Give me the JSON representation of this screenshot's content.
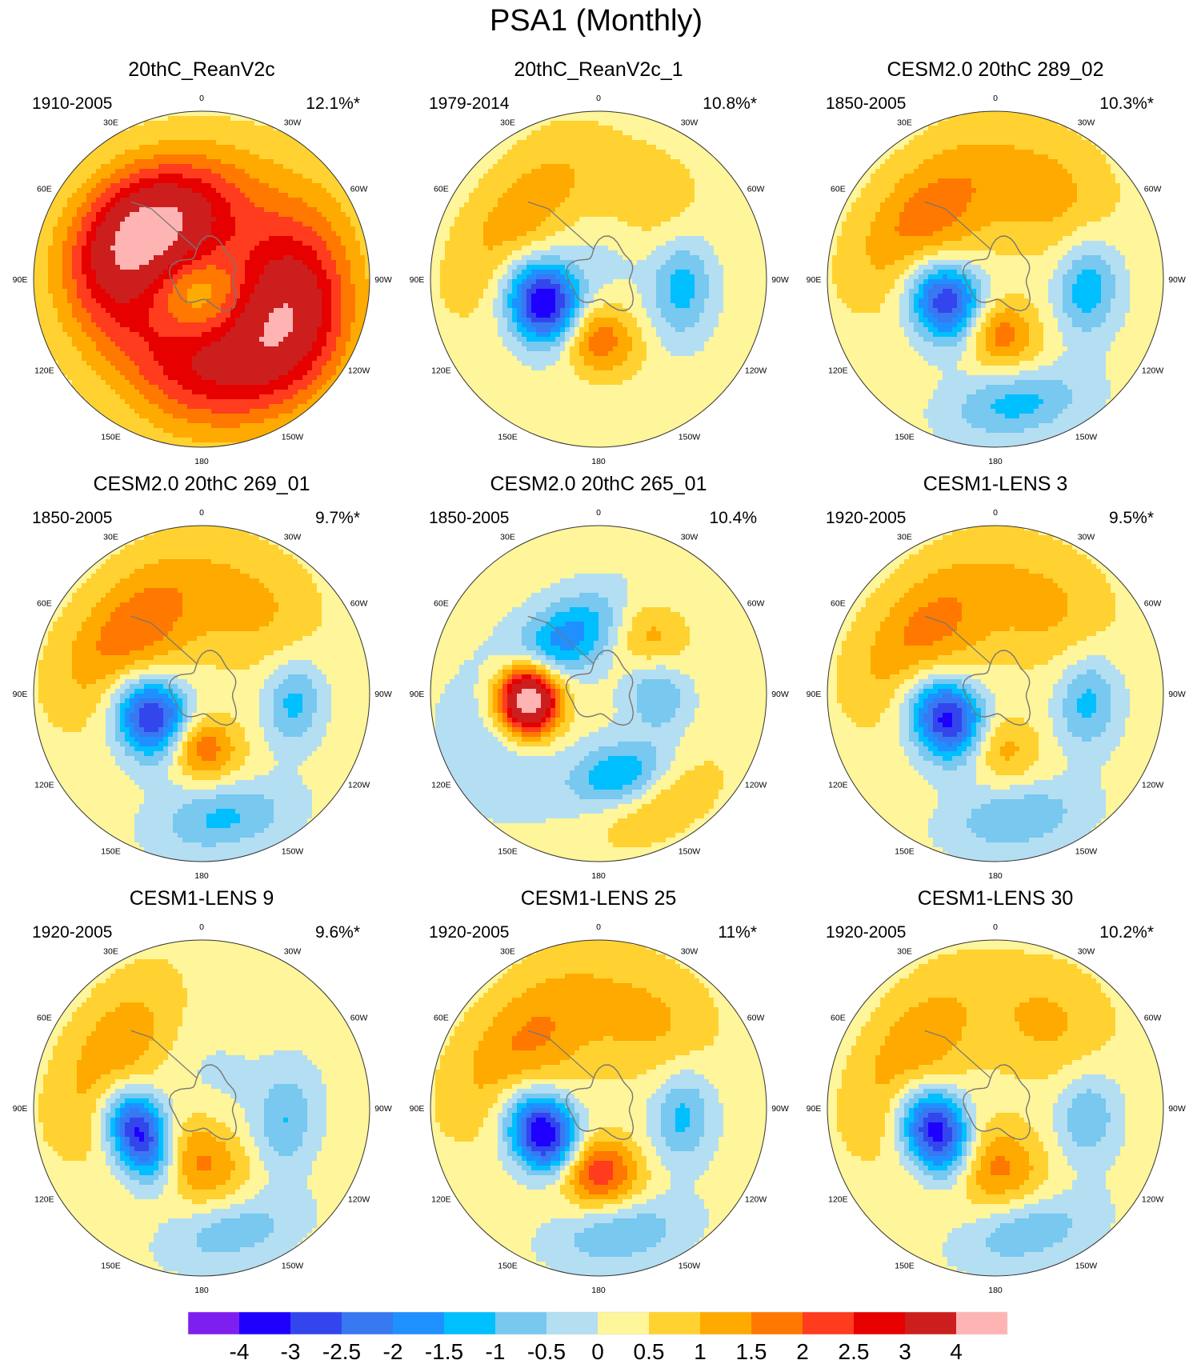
{
  "chart_data": {
    "type": "heatmap",
    "title": "PSA1 (Monthly)",
    "projection": "south polar stereographic",
    "longitude_labels": [
      "0",
      "30E",
      "60E",
      "90E",
      "120E",
      "150E",
      "180",
      "150W",
      "120W",
      "90W",
      "60W",
      "30W"
    ],
    "colorbar": {
      "levels": [
        "-4",
        "-3",
        "-2.5",
        "-2",
        "-1.5",
        "-1",
        "-0.5",
        "0",
        "0.5",
        "1",
        "1.5",
        "2",
        "2.5",
        "3",
        "4"
      ],
      "colors": [
        "#7f1fef",
        "#1f00ff",
        "#3346ee",
        "#3878f0",
        "#1f90ff",
        "#00bfff",
        "#78c8f0",
        "#b4def2",
        "#fff59a",
        "#ffd232",
        "#ffaa00",
        "#ff7800",
        "#ff3c1e",
        "#e60000",
        "#cd1e1e",
        "#ffb4b4"
      ]
    },
    "panels": [
      {
        "name": "20thC_ReanV2c",
        "period": "1910-2005",
        "variance": "12.1%*",
        "blobs": [
          {
            "a": -30,
            "r": 0.38,
            "s": 0.36,
            "t": 0.26,
            "v": 3.2
          },
          {
            "a": 150,
            "r": 0.5,
            "s": 0.38,
            "t": 0.3,
            "v": 2.6
          },
          {
            "a": 95,
            "r": 0.55,
            "s": 0.4,
            "t": 0.26,
            "v": 2.4
          },
          {
            "a": -70,
            "r": 0.5,
            "s": 0.32,
            "t": 0.24,
            "v": 1.8
          },
          {
            "a": -140,
            "r": 0.48,
            "s": 0.34,
            "t": 0.26,
            "v": 1.4
          },
          {
            "a": 200,
            "r": 0.12,
            "s": 0.24,
            "t": 0.18,
            "v": -1.3
          }
        ]
      },
      {
        "name": "20thC_ReanV2c_1",
        "period": "1979-2014",
        "variance": "10.8%*",
        "blobs": [
          {
            "a": -120,
            "r": 0.35,
            "s": 0.2,
            "t": 0.15,
            "v": -4.6
          },
          {
            "a": -165,
            "r": 0.35,
            "s": 0.2,
            "t": 0.15,
            "v": 2.5
          },
          {
            "a": 95,
            "r": 0.5,
            "s": 0.22,
            "t": 0.13,
            "v": -1.5
          },
          {
            "a": -55,
            "r": 0.58,
            "s": 0.4,
            "t": 0.2,
            "v": 1.2
          },
          {
            "a": 15,
            "r": 0.2,
            "s": 0.25,
            "t": 0.2,
            "v": -0.6
          },
          {
            "a": 30,
            "r": 0.5,
            "s": 0.3,
            "t": 0.25,
            "v": 0.8
          }
        ]
      },
      {
        "name": "CESM2.0 20thC 289_02",
        "period": "1850-2005",
        "variance": "10.3%*",
        "blobs": [
          {
            "a": -125,
            "r": 0.32,
            "s": 0.2,
            "t": 0.15,
            "v": -4.4
          },
          {
            "a": -165,
            "r": 0.32,
            "s": 0.2,
            "t": 0.15,
            "v": 2.8
          },
          {
            "a": 95,
            "r": 0.55,
            "s": 0.2,
            "t": 0.13,
            "v": -1.6
          },
          {
            "a": 170,
            "r": 0.75,
            "s": 0.28,
            "t": 0.14,
            "v": -1.4
          },
          {
            "a": -50,
            "r": 0.55,
            "s": 0.38,
            "t": 0.22,
            "v": 1.6
          },
          {
            "a": 30,
            "r": 0.6,
            "s": 0.3,
            "t": 0.25,
            "v": 1.0
          }
        ]
      },
      {
        "name": "CESM2.0 20thC 269_01",
        "period": "1850-2005",
        "variance": "9.7%*",
        "blobs": [
          {
            "a": -125,
            "r": 0.32,
            "s": 0.2,
            "t": 0.15,
            "v": -4.4
          },
          {
            "a": -165,
            "r": 0.32,
            "s": 0.18,
            "t": 0.14,
            "v": 3.0
          },
          {
            "a": 95,
            "r": 0.55,
            "s": 0.18,
            "t": 0.12,
            "v": -1.4
          },
          {
            "a": 170,
            "r": 0.75,
            "s": 0.28,
            "t": 0.14,
            "v": -1.3
          },
          {
            "a": -50,
            "r": 0.55,
            "s": 0.38,
            "t": 0.22,
            "v": 1.7
          },
          {
            "a": 30,
            "r": 0.6,
            "s": 0.3,
            "t": 0.25,
            "v": 0.9
          }
        ]
      },
      {
        "name": "CESM2.0 20thC 265_01",
        "period": "1850-2005",
        "variance": "10.4%",
        "blobs": [
          {
            "a": -95,
            "r": 0.42,
            "s": 0.15,
            "t": 0.13,
            "v": 5.2
          },
          {
            "a": -30,
            "r": 0.38,
            "s": 0.28,
            "t": 0.15,
            "v": -2.0
          },
          {
            "a": 165,
            "r": 0.5,
            "s": 0.2,
            "t": 0.13,
            "v": -1.8
          },
          {
            "a": 90,
            "r": 0.35,
            "s": 0.15,
            "t": 0.13,
            "v": -1.3
          },
          {
            "a": 40,
            "r": 0.45,
            "s": 0.18,
            "t": 0.15,
            "v": 1.1
          },
          {
            "a": 150,
            "r": 0.75,
            "s": 0.3,
            "t": 0.15,
            "v": 0.8
          },
          {
            "a": -120,
            "r": 0.65,
            "s": 0.3,
            "t": 0.25,
            "v": -0.7
          }
        ]
      },
      {
        "name": "CESM1-LENS 3",
        "period": "1920-2005",
        "variance": "9.5%*",
        "blobs": [
          {
            "a": -125,
            "r": 0.32,
            "s": 0.2,
            "t": 0.15,
            "v": -4.4
          },
          {
            "a": -165,
            "r": 0.32,
            "s": 0.2,
            "t": 0.15,
            "v": 2.0
          },
          {
            "a": 95,
            "r": 0.55,
            "s": 0.2,
            "t": 0.13,
            "v": -1.4
          },
          {
            "a": 170,
            "r": 0.75,
            "s": 0.28,
            "t": 0.14,
            "v": -1.2
          },
          {
            "a": -50,
            "r": 0.55,
            "s": 0.38,
            "t": 0.22,
            "v": 1.5
          },
          {
            "a": 30,
            "r": 0.6,
            "s": 0.3,
            "t": 0.25,
            "v": 0.9
          }
        ]
      },
      {
        "name": "CESM1-LENS 9",
        "period": "1920-2005",
        "variance": "9.6%*",
        "blobs": [
          {
            "a": -115,
            "r": 0.4,
            "s": 0.2,
            "t": 0.13,
            "v": -4.4
          },
          {
            "a": -160,
            "r": 0.32,
            "s": 0.28,
            "t": 0.18,
            "v": 1.7
          },
          {
            "a": 100,
            "r": 0.5,
            "s": 0.22,
            "t": 0.13,
            "v": -1.2
          },
          {
            "a": 165,
            "r": 0.75,
            "s": 0.28,
            "t": 0.14,
            "v": -1.1
          },
          {
            "a": -60,
            "r": 0.6,
            "s": 0.38,
            "t": 0.2,
            "v": 1.3
          },
          {
            "a": 15,
            "r": 0.2,
            "s": 0.25,
            "t": 0.2,
            "v": -0.3
          }
        ]
      },
      {
        "name": "CESM1-LENS 25",
        "period": "1920-2005",
        "variance": "11%*",
        "blobs": [
          {
            "a": -120,
            "r": 0.36,
            "s": 0.2,
            "t": 0.14,
            "v": -4.4
          },
          {
            "a": -170,
            "r": 0.38,
            "s": 0.2,
            "t": 0.15,
            "v": 2.8
          },
          {
            "a": 95,
            "r": 0.5,
            "s": 0.2,
            "t": 0.13,
            "v": -1.4
          },
          {
            "a": 170,
            "r": 0.75,
            "s": 0.28,
            "t": 0.14,
            "v": -1.2
          },
          {
            "a": -50,
            "r": 0.58,
            "s": 0.4,
            "t": 0.22,
            "v": 1.4
          },
          {
            "a": 30,
            "r": 0.6,
            "s": 0.3,
            "t": 0.25,
            "v": 0.9
          }
        ]
      },
      {
        "name": "CESM1-LENS 30",
        "period": "1920-2005",
        "variance": "10.2%*",
        "blobs": [
          {
            "a": -115,
            "r": 0.38,
            "s": 0.2,
            "t": 0.14,
            "v": -4.4
          },
          {
            "a": -165,
            "r": 0.35,
            "s": 0.26,
            "t": 0.18,
            "v": 1.8
          },
          {
            "a": 95,
            "r": 0.55,
            "s": 0.2,
            "t": 0.13,
            "v": -1.2
          },
          {
            "a": 165,
            "r": 0.75,
            "s": 0.28,
            "t": 0.14,
            "v": -1.2
          },
          {
            "a": -60,
            "r": 0.58,
            "s": 0.38,
            "t": 0.2,
            "v": 1.3
          },
          {
            "a": 30,
            "r": 0.6,
            "s": 0.3,
            "t": 0.25,
            "v": 0.9
          }
        ]
      }
    ]
  }
}
